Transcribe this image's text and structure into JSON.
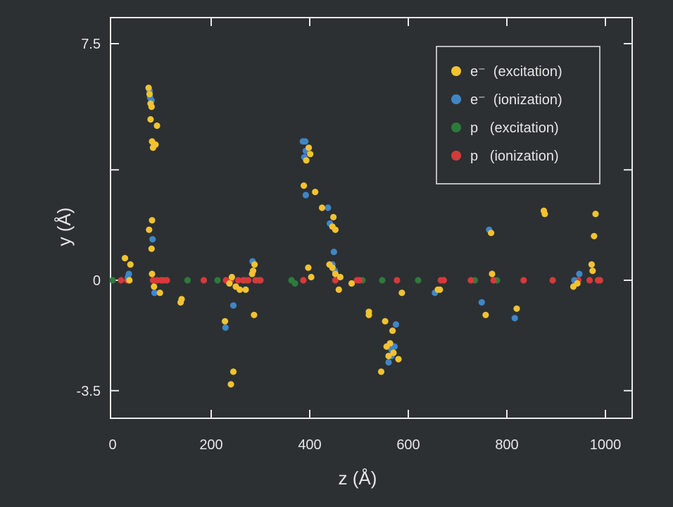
{
  "chart_data": {
    "type": "scatter",
    "title": "",
    "xlabel": "z  (Å)",
    "ylabel": "y  (Å)",
    "xlim": [
      0,
      1056
    ],
    "ylim": [
      -4.4,
      8.4
    ],
    "x_ticks": [
      0,
      200,
      400,
      600,
      800,
      1000
    ],
    "x_tick_labels": [
      "0",
      "200",
      "400",
      "600",
      "800",
      "1000"
    ],
    "y_ticks": [
      -3.5,
      0,
      3.5,
      7.5
    ],
    "y_tick_labels": [
      "-3.5",
      "0",
      "",
      "7.5"
    ],
    "grid": false,
    "legend_position": "upper right (inside)",
    "series": [
      {
        "name": "e⁻ (excitation)",
        "color": "#f2c230",
        "points": [
          [
            73,
            6.1
          ],
          [
            75,
            5.9
          ],
          [
            77,
            5.6
          ],
          [
            79,
            5.5
          ],
          [
            77,
            5.1
          ],
          [
            90,
            4.9
          ],
          [
            80,
            4.4
          ],
          [
            84,
            4.3
          ],
          [
            82,
            4.2
          ],
          [
            87,
            4.3
          ],
          [
            80,
            1.9
          ],
          [
            74,
            1.6
          ],
          [
            79,
            1.0
          ],
          [
            80,
            0.2
          ],
          [
            36,
            0.5
          ],
          [
            25,
            0.7
          ],
          [
            96,
            -0.4
          ],
          [
            84,
            -0.2
          ],
          [
            140,
            -0.6
          ],
          [
            138,
            -0.7
          ],
          [
            34,
            0.0
          ],
          [
            242,
            0.1
          ],
          [
            237,
            -0.1
          ],
          [
            258,
            -0.3
          ],
          [
            270,
            -0.3
          ],
          [
            250,
            -0.2
          ],
          [
            288,
            0.5
          ],
          [
            285,
            0.3
          ],
          [
            283,
            0.2
          ],
          [
            287,
            -1.1
          ],
          [
            228,
            -1.3
          ],
          [
            245,
            -2.9
          ],
          [
            240,
            -3.3
          ],
          [
            398,
            4.2
          ],
          [
            401,
            4.0
          ],
          [
            393,
            3.8
          ],
          [
            388,
            3.0
          ],
          [
            411,
            2.8
          ],
          [
            425,
            2.3
          ],
          [
            448,
            2.0
          ],
          [
            452,
            1.6
          ],
          [
            446,
            1.7
          ],
          [
            440,
            0.5
          ],
          [
            446,
            0.4
          ],
          [
            452,
            0.2
          ],
          [
            462,
            0.1
          ],
          [
            459,
            -0.3
          ],
          [
            397,
            0.4
          ],
          [
            403,
            0.1
          ],
          [
            485,
            -0.1
          ],
          [
            520,
            -1.0
          ],
          [
            520,
            -1.1
          ],
          [
            553,
            -1.3
          ],
          [
            568,
            -1.6
          ],
          [
            556,
            -2.1
          ],
          [
            563,
            -2.0
          ],
          [
            570,
            -2.3
          ],
          [
            580,
            -2.5
          ],
          [
            545,
            -2.9
          ],
          [
            560,
            -2.4
          ],
          [
            587,
            -0.4
          ],
          [
            660,
            -0.3
          ],
          [
            664,
            -0.3
          ],
          [
            770,
            0.2
          ],
          [
            757,
            -1.1
          ],
          [
            768,
            1.5
          ],
          [
            820,
            -0.9
          ],
          [
            875,
            2.2
          ],
          [
            877,
            2.1
          ],
          [
            980,
            2.1
          ],
          [
            977,
            1.4
          ],
          [
            972,
            0.5
          ],
          [
            974,
            0.3
          ],
          [
            935,
            -0.2
          ],
          [
            943,
            -0.1
          ]
        ]
      },
      {
        "name": "e⁻ (ionization)",
        "color": "#3f86c6",
        "points": [
          [
            75,
            6.0
          ],
          [
            76,
            5.8
          ],
          [
            77,
            5.6
          ],
          [
            79,
            5.7
          ],
          [
            81,
            1.3
          ],
          [
            85,
            -0.4
          ],
          [
            33,
            0.2
          ],
          [
            31,
            0.1
          ],
          [
            229,
            -1.5
          ],
          [
            245,
            -0.8
          ],
          [
            284,
            0.6
          ],
          [
            386,
            4.4
          ],
          [
            391,
            4.4
          ],
          [
            392,
            4.1
          ],
          [
            389,
            3.9
          ],
          [
            392,
            2.7
          ],
          [
            437,
            2.3
          ],
          [
            441,
            1.8
          ],
          [
            449,
            0.9
          ],
          [
            451,
            0.3
          ],
          [
            575,
            -1.4
          ],
          [
            566,
            -2.2
          ],
          [
            560,
            -2.6
          ],
          [
            566,
            -2.4
          ],
          [
            572,
            -2.1
          ],
          [
            764,
            1.6
          ],
          [
            749,
            -0.7
          ],
          [
            816,
            -1.2
          ],
          [
            937,
            0.0
          ],
          [
            947,
            0.2
          ],
          [
            654,
            -0.4
          ],
          [
            446,
            0.5
          ]
        ]
      },
      {
        "name": "p (excitation)",
        "color": "#2e7a3c",
        "points": [
          [
            0,
            0.0
          ],
          [
            152,
            0.0
          ],
          [
            213,
            0.0
          ],
          [
            269,
            0.0
          ],
          [
            296,
            0.0
          ],
          [
            363,
            0.0
          ],
          [
            370,
            -0.1
          ],
          [
            507,
            0.0
          ],
          [
            547,
            0.0
          ],
          [
            620,
            0.0
          ],
          [
            735,
            0.0
          ],
          [
            780,
            0.0
          ]
        ]
      },
      {
        "name": "p (ionization)",
        "color": "#d63a3a",
        "points": [
          [
            17,
            0.0
          ],
          [
            30,
            0.0
          ],
          [
            82,
            0.0
          ],
          [
            90,
            0.0
          ],
          [
            98,
            0.0
          ],
          [
            103,
            0.0
          ],
          [
            110,
            0.0
          ],
          [
            185,
            0.0
          ],
          [
            230,
            0.0
          ],
          [
            240,
            0.0
          ],
          [
            255,
            0.0
          ],
          [
            265,
            0.0
          ],
          [
            275,
            0.0
          ],
          [
            290,
            0.0
          ],
          [
            300,
            0.0
          ],
          [
            387,
            0.0
          ],
          [
            452,
            0.0
          ],
          [
            496,
            0.0
          ],
          [
            501,
            0.0
          ],
          [
            577,
            0.0
          ],
          [
            666,
            0.0
          ],
          [
            672,
            0.0
          ],
          [
            727,
            0.0
          ],
          [
            773,
            0.0
          ],
          [
            834,
            0.0
          ],
          [
            893,
            0.0
          ],
          [
            945,
            0.0
          ],
          [
            968,
            0.0
          ],
          [
            985,
            0.0
          ],
          [
            989,
            0.0
          ]
        ]
      }
    ]
  },
  "legend": {
    "items": [
      {
        "label": "e⁻  (excitation)",
        "color": "#f2c230"
      },
      {
        "label": "e⁻  (ionization)",
        "color": "#3f86c6"
      },
      {
        "label": "p   (excitation)",
        "color": "#2e7a3c"
      },
      {
        "label": "p   (ionization)",
        "color": "#d63a3a"
      }
    ]
  },
  "style": {
    "background": "#2c3033",
    "axis_color": "#e8e8e8"
  }
}
